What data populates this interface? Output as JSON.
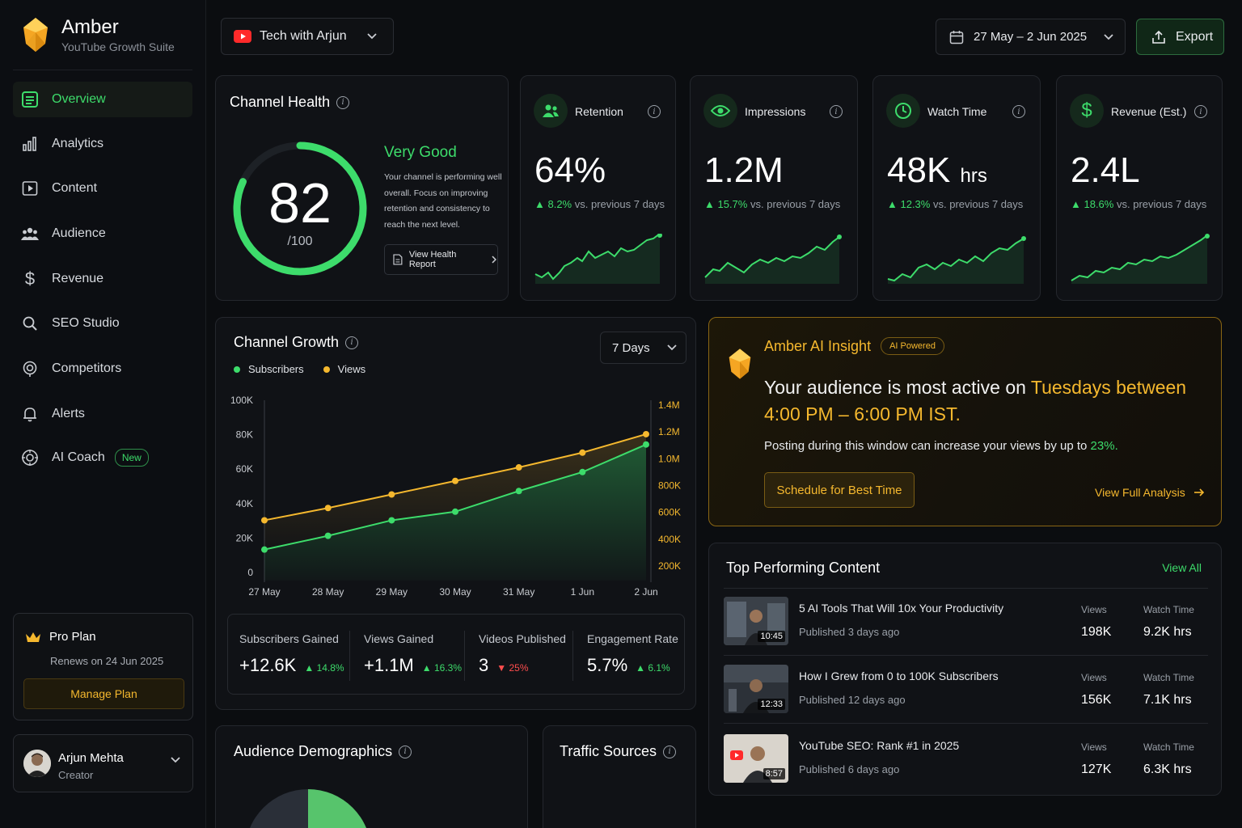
{
  "brand": {
    "name": "Amber",
    "subtitle": "YouTube Growth Suite"
  },
  "nav": [
    {
      "label": "Overview",
      "icon": "overview-icon",
      "active": true
    },
    {
      "label": "Analytics",
      "icon": "analytics-icon"
    },
    {
      "label": "Content",
      "icon": "content-icon"
    },
    {
      "label": "Audience",
      "icon": "audience-icon"
    },
    {
      "label": "Revenue",
      "icon": "dollar-icon"
    },
    {
      "label": "SEO Studio",
      "icon": "search-icon"
    },
    {
      "label": "Competitors",
      "icon": "competitors-icon"
    },
    {
      "label": "Alerts",
      "icon": "bell-icon"
    },
    {
      "label": "AI Coach",
      "icon": "ai-coach-icon",
      "badge": "New"
    }
  ],
  "plan": {
    "title": "Pro Plan",
    "renew": "Renews on 24 Jun 2025",
    "button": "Manage Plan"
  },
  "user": {
    "name": "Arjun Mehta",
    "role": "Creator"
  },
  "header": {
    "channel": "Tech with Arjun",
    "date_range": "27 May – 2 Jun 2025",
    "export": "Export"
  },
  "health": {
    "title": "Channel Health",
    "score": "82",
    "max": "/100",
    "score_fraction": 0.82,
    "rating": "Very Good",
    "desc": "Your channel is performing well overall. Focus on improving retention and consistency to reach the next level.",
    "button": "View Health Report"
  },
  "kpis": [
    {
      "label": "Retention",
      "value": "64%",
      "unit": "",
      "delta": "8.2%",
      "delta_text": "vs. previous 7 days",
      "icon": "users-icon"
    },
    {
      "label": "Impressions",
      "value": "1.2M",
      "unit": "",
      "delta": "15.7%",
      "delta_text": "vs. previous 7 days",
      "icon": "eye-icon"
    },
    {
      "label": "Watch Time",
      "value": "48K",
      "unit": "hrs",
      "delta": "12.3%",
      "delta_text": "vs. previous 7 days",
      "icon": "clock-icon"
    },
    {
      "label": "Revenue (Est.)",
      "value": "2.4L",
      "unit": "",
      "delta": "18.6%",
      "delta_text": "vs. previous 7 days",
      "icon": "dollar-icon"
    }
  ],
  "growth": {
    "title": "Channel Growth",
    "period": "7 Days",
    "stats": [
      {
        "label": "Subscribers Gained",
        "value": "+12.6K",
        "delta": "14.8%",
        "dir": "up"
      },
      {
        "label": "Views Gained",
        "value": "+1.1M",
        "delta": "16.3%",
        "dir": "up"
      },
      {
        "label": "Videos Published",
        "value": "3",
        "delta": "25%",
        "dir": "down"
      },
      {
        "label": "Engagement Rate",
        "value": "5.7%",
        "delta": "6.1%",
        "dir": "up"
      }
    ]
  },
  "chart_data": {
    "type": "line",
    "x": [
      "27 May",
      "28 May",
      "29 May",
      "30 May",
      "31 May",
      "1 Jun",
      "2 Jun"
    ],
    "series": [
      {
        "name": "Subscribers",
        "axis": "left",
        "color": "#3ddc6b",
        "values": [
          18000,
          26000,
          35000,
          40000,
          52000,
          63000,
          79000
        ]
      },
      {
        "name": "Views",
        "axis": "right",
        "color": "#f5b82e",
        "values": [
          490000,
          590000,
          700000,
          810000,
          920000,
          1040000,
          1190000
        ]
      }
    ],
    "left_ticks": [
      "100K",
      "80K",
      "60K",
      "40K",
      "20K",
      "0"
    ],
    "right_ticks": [
      "1.4M",
      "1.2M",
      "1.0M",
      "800K",
      "600K",
      "400K",
      "200K"
    ],
    "ylim_left": [
      0,
      100000
    ],
    "ylim_right": [
      0,
      1400000
    ]
  },
  "insight": {
    "title": "Amber AI Insight",
    "badge": "AI Powered",
    "text_pre": "Your audience is most active on ",
    "text_hl1": "Tuesdays between",
    "text_hl2": "4:00 PM – 6:00 PM IST.",
    "sub_pre": "Posting during this window can increase your views by up to ",
    "sub_hl": "23%.",
    "button": "Schedule for Best Time",
    "link": "View Full Analysis"
  },
  "top": {
    "title": "Top Performing Content",
    "view_all": "View All",
    "col_views": "Views",
    "col_watch": "Watch Time",
    "items": [
      {
        "title": "5 AI Tools That Will 10x Your Productivity",
        "published": "Published 3 days ago",
        "duration": "10:45",
        "views": "198K",
        "watch": "9.2K hrs"
      },
      {
        "title": "How I Grew from 0 to 100K Subscribers",
        "published": "Published 12 days ago",
        "duration": "12:33",
        "views": "156K",
        "watch": "7.1K hrs"
      },
      {
        "title": "YouTube SEO: Rank #1 in 2025",
        "published": "Published 6 days ago",
        "duration": "8:57",
        "views": "127K",
        "watch": "6.3K hrs"
      }
    ]
  },
  "demographics": {
    "title": "Audience Demographics"
  },
  "traffic": {
    "title": "Traffic Sources"
  },
  "colors": {
    "accent": "#3ddc6b",
    "gold": "#f5b82e",
    "down": "#ff4d4d"
  }
}
